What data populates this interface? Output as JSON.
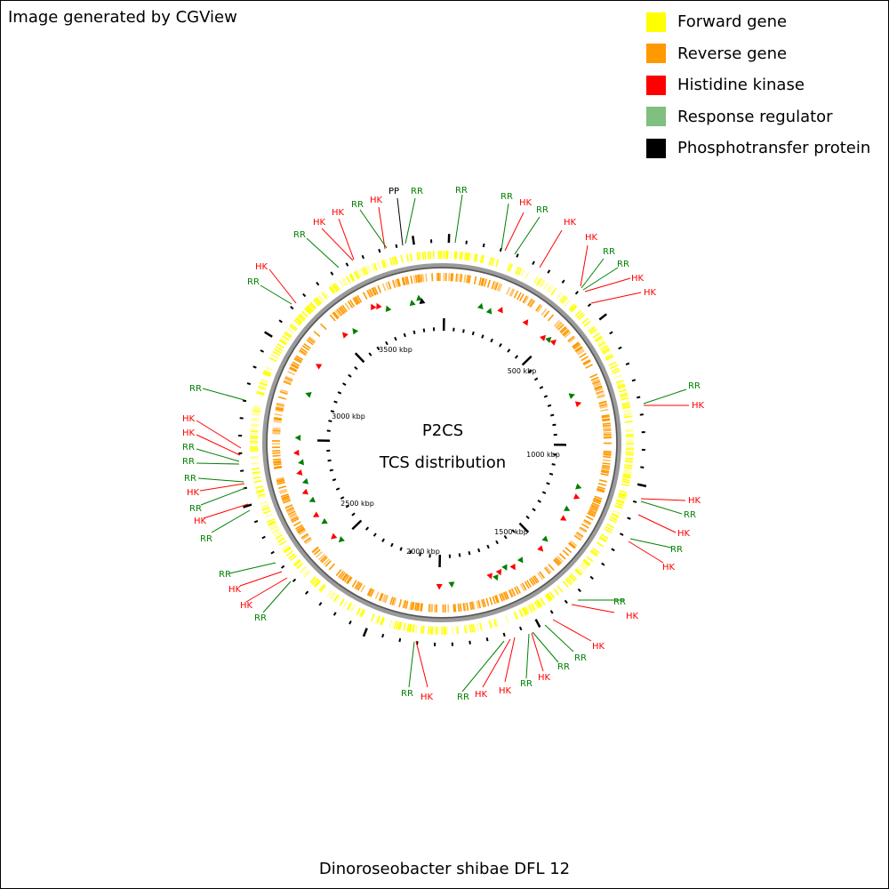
{
  "credit": "Image generated by CGView",
  "legend": [
    {
      "label": "Forward gene",
      "color": "#ffff00"
    },
    {
      "label": "Reverse gene",
      "color": "#ff9900"
    },
    {
      "label": "Histidine kinase",
      "color": "#ff0000"
    },
    {
      "label": "Response regulator",
      "color": "#7fbf7f"
    },
    {
      "label": "Phosphotransfer protein",
      "color": "#000000"
    }
  ],
  "center_title": "P2CS",
  "center_subtitle": "TCS distribution",
  "genome_name": "Dinoroseobacter shibae DFL 12",
  "tick_labels": [
    "500 kbp",
    "1000 kbp",
    "1500 kbp",
    "2000 kbp",
    "2500 kbp",
    "3000 kbp",
    "3500 kbp"
  ],
  "feature_labels": [
    {
      "text": "HK",
      "color": "#ff0000"
    },
    {
      "text": "PP",
      "color": "#000000"
    },
    {
      "text": "RR",
      "color": "#008000"
    },
    {
      "text": "RR",
      "color": "#008000"
    },
    {
      "text": "RR",
      "color": "#008000"
    },
    {
      "text": "HK",
      "color": "#ff0000"
    },
    {
      "text": "RR",
      "color": "#008000"
    },
    {
      "text": "HK",
      "color": "#ff0000"
    },
    {
      "text": "HK",
      "color": "#ff0000"
    },
    {
      "text": "RR",
      "color": "#008000"
    },
    {
      "text": "RR",
      "color": "#008000"
    },
    {
      "text": "HK",
      "color": "#ff0000"
    },
    {
      "text": "HK",
      "color": "#ff0000"
    },
    {
      "text": "RR",
      "color": "#008000"
    },
    {
      "text": "HK",
      "color": "#ff0000"
    },
    {
      "text": "HK",
      "color": "#ff0000"
    },
    {
      "text": "RR",
      "color": "#008000"
    },
    {
      "text": "HK",
      "color": "#ff0000"
    },
    {
      "text": "RR",
      "color": "#008000"
    },
    {
      "text": "HK",
      "color": "#ff0000"
    },
    {
      "text": "RR",
      "color": "#008000"
    },
    {
      "text": "HK",
      "color": "#ff0000"
    },
    {
      "text": "HK",
      "color": "#ff0000"
    },
    {
      "text": "RR",
      "color": "#008000"
    },
    {
      "text": "RR",
      "color": "#008000"
    },
    {
      "text": "HK",
      "color": "#ff0000"
    },
    {
      "text": "HK",
      "color": "#ff0000"
    },
    {
      "text": "RR",
      "color": "#008000"
    },
    {
      "text": "HK",
      "color": "#ff0000"
    },
    {
      "text": "RR",
      "color": "#008000"
    },
    {
      "text": "HK",
      "color": "#ff0000"
    },
    {
      "text": "RR",
      "color": "#008000"
    },
    {
      "text": "RR",
      "color": "#008000"
    },
    {
      "text": "HK",
      "color": "#ff0000"
    },
    {
      "text": "RR",
      "color": "#008000"
    },
    {
      "text": "HK",
      "color": "#ff0000"
    },
    {
      "text": "RR",
      "color": "#008000"
    },
    {
      "text": "RR",
      "color": "#008000"
    },
    {
      "text": "HK",
      "color": "#ff0000"
    },
    {
      "text": "RR",
      "color": "#008000"
    },
    {
      "text": "HK",
      "color": "#ff0000"
    },
    {
      "text": "HK",
      "color": "#ff0000"
    },
    {
      "text": "RR",
      "color": "#008000"
    },
    {
      "text": "RR",
      "color": "#008000"
    },
    {
      "text": "RR",
      "color": "#008000"
    },
    {
      "text": "HK",
      "color": "#ff0000"
    },
    {
      "text": "RR",
      "color": "#008000"
    },
    {
      "text": "HK",
      "color": "#ff0000"
    },
    {
      "text": "RR",
      "color": "#008000"
    },
    {
      "text": "HK",
      "color": "#ff0000"
    },
    {
      "text": "HK",
      "color": "#ff0000"
    },
    {
      "text": "RR",
      "color": "#008000"
    },
    {
      "text": "RR",
      "color": "#008000"
    },
    {
      "text": "HK",
      "color": "#ff0000"
    },
    {
      "text": "RR",
      "color": "#008000"
    }
  ]
}
